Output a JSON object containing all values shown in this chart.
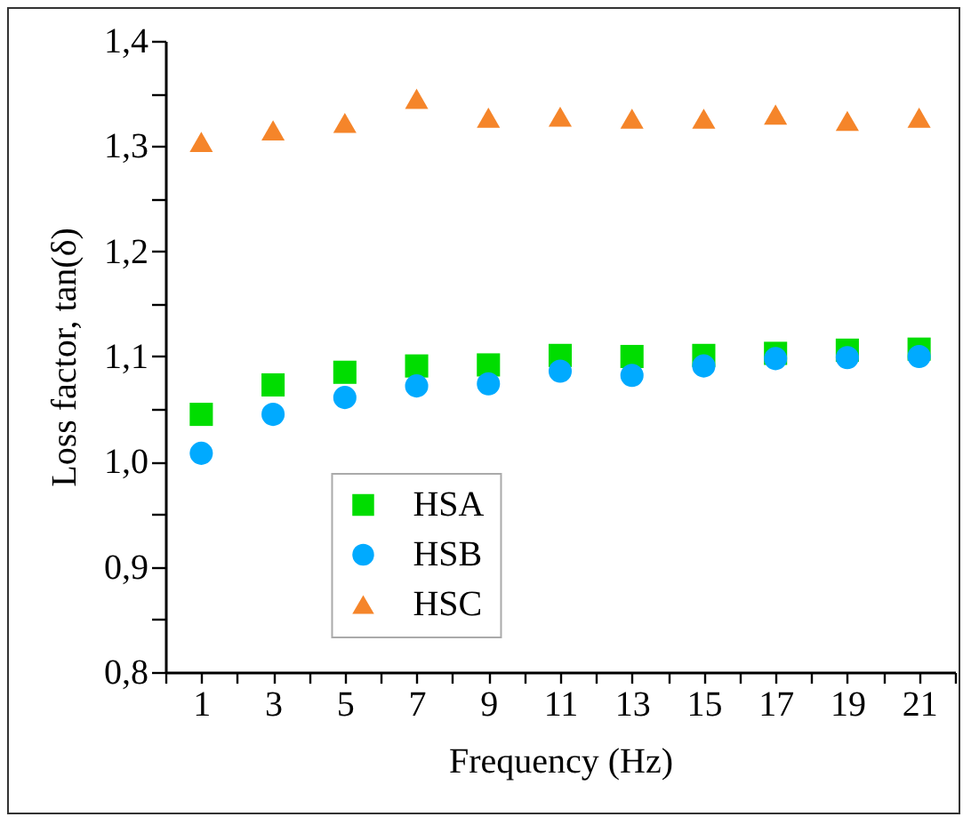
{
  "chart_data": {
    "type": "scatter",
    "xlabel": "Frequency (Hz)",
    "ylabel": "Loss factor, tan(δ)",
    "x": [
      1,
      3,
      5,
      7,
      9,
      11,
      13,
      15,
      17,
      19,
      21
    ],
    "series": [
      {
        "name": "HSA",
        "color": "#00dd00",
        "marker": "square",
        "values": [
          1.045,
          1.073,
          1.085,
          1.091,
          1.092,
          1.101,
          1.1,
          1.101,
          1.103,
          1.106,
          1.107
        ]
      },
      {
        "name": "HSB",
        "color": "#00aaff",
        "marker": "circle",
        "values": [
          1.008,
          1.045,
          1.061,
          1.072,
          1.074,
          1.086,
          1.082,
          1.091,
          1.098,
          1.099,
          1.1
        ]
      },
      {
        "name": "HSC",
        "color": "#f5852a",
        "marker": "triangle",
        "values": [
          1.304,
          1.315,
          1.322,
          1.345,
          1.327,
          1.328,
          1.326,
          1.326,
          1.33,
          1.324,
          1.327
        ]
      }
    ],
    "xlim": [
      0,
      22
    ],
    "xticks": [
      {
        "value": 0,
        "label": null
      },
      1,
      {
        "value": 2,
        "label": null
      },
      3,
      {
        "value": 4,
        "label": null
      },
      5,
      {
        "value": 6,
        "label": null
      },
      7,
      {
        "value": 8,
        "label": null
      },
      9,
      {
        "value": 10,
        "label": null
      },
      11,
      {
        "value": 12,
        "label": null
      },
      13,
      {
        "value": 14,
        "label": null
      },
      15,
      {
        "value": 16,
        "label": null
      },
      17,
      {
        "value": 18,
        "label": null
      },
      19,
      {
        "value": 20,
        "label": null
      },
      21,
      {
        "value": 22,
        "label": null
      }
    ],
    "ylim": [
      0.8,
      1.4
    ],
    "yticks": [
      {
        "value": 0.8,
        "label": "0,8"
      },
      {
        "value": 0.85,
        "label": null
      },
      {
        "value": 0.9,
        "label": "0,9"
      },
      {
        "value": 0.95,
        "label": null
      },
      {
        "value": 1.0,
        "label": "1,0"
      },
      {
        "value": 1.05,
        "label": null
      },
      {
        "value": 1.1,
        "label": "1,1"
      },
      {
        "value": 1.15,
        "label": null
      },
      {
        "value": 1.2,
        "label": "1,2"
      },
      {
        "value": 1.25,
        "label": null
      },
      {
        "value": 1.3,
        "label": "1,3"
      },
      {
        "value": 1.35,
        "label": null
      },
      {
        "value": 1.4,
        "label": "1,4"
      }
    ],
    "legend": "bottom",
    "grid": false
  }
}
